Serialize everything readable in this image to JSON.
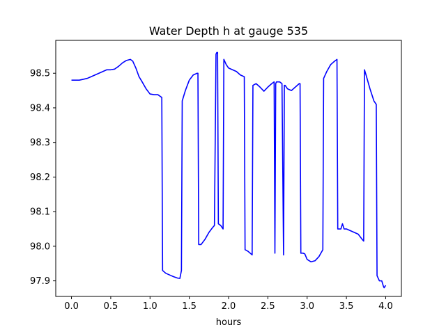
{
  "chart_data": {
    "type": "line",
    "title": "Water Depth h at gauge 535",
    "xlabel": "hours",
    "ylabel": "",
    "xlim": [
      -0.2,
      4.2
    ],
    "ylim": [
      97.855,
      98.595
    ],
    "grid": false,
    "xticks": [
      {
        "value": 0.0,
        "label": "0.0"
      },
      {
        "value": 0.5,
        "label": "0.5"
      },
      {
        "value": 1.0,
        "label": "1.0"
      },
      {
        "value": 1.5,
        "label": "1.5"
      },
      {
        "value": 2.0,
        "label": "2.0"
      },
      {
        "value": 2.5,
        "label": "2.5"
      },
      {
        "value": 3.0,
        "label": "3.0"
      },
      {
        "value": 3.5,
        "label": "3.5"
      },
      {
        "value": 4.0,
        "label": "4.0"
      }
    ],
    "yticks": [
      {
        "value": 97.9,
        "label": "97.9"
      },
      {
        "value": 98.0,
        "label": "98.0"
      },
      {
        "value": 98.1,
        "label": "98.1"
      },
      {
        "value": 98.2,
        "label": "98.2"
      },
      {
        "value": 98.3,
        "label": "98.3"
      },
      {
        "value": 98.4,
        "label": "98.4"
      },
      {
        "value": 98.5,
        "label": "98.5"
      }
    ],
    "series": [
      {
        "color": "#0000ff",
        "x": [
          0.0,
          0.1,
          0.2,
          0.3,
          0.4,
          0.45,
          0.5,
          0.55,
          0.6,
          0.65,
          0.7,
          0.75,
          0.78,
          0.82,
          0.86,
          0.9,
          0.95,
          1.0,
          1.05,
          1.1,
          1.15,
          1.16,
          1.2,
          1.25,
          1.3,
          1.35,
          1.38,
          1.4,
          1.41,
          1.45,
          1.5,
          1.55,
          1.6,
          1.61,
          1.62,
          1.65,
          1.7,
          1.75,
          1.8,
          1.82,
          1.84,
          1.85,
          1.86,
          1.87,
          1.9,
          1.93,
          1.94,
          1.97,
          2.0,
          2.05,
          2.1,
          2.15,
          2.2,
          2.21,
          2.25,
          2.3,
          2.31,
          2.35,
          2.4,
          2.45,
          2.5,
          2.55,
          2.58,
          2.59,
          2.6,
          2.61,
          2.65,
          2.68,
          2.7,
          2.71,
          2.72,
          2.75,
          2.8,
          2.85,
          2.9,
          2.91,
          2.92,
          2.95,
          2.97,
          3.0,
          3.05,
          3.1,
          3.15,
          3.2,
          3.21,
          3.25,
          3.3,
          3.35,
          3.38,
          3.39,
          3.4,
          3.43,
          3.45,
          3.47,
          3.5,
          3.55,
          3.6,
          3.65,
          3.7,
          3.72,
          3.73,
          3.75,
          3.8,
          3.85,
          3.88,
          3.89,
          3.9,
          3.92,
          3.95,
          3.97,
          3.98,
          4.0
        ],
        "y": [
          98.48,
          98.48,
          98.485,
          98.495,
          98.505,
          98.51,
          98.51,
          98.512,
          98.52,
          98.53,
          98.537,
          98.54,
          98.535,
          98.515,
          98.49,
          98.475,
          98.455,
          98.44,
          98.438,
          98.438,
          98.43,
          97.93,
          97.922,
          97.917,
          97.912,
          97.908,
          97.907,
          97.93,
          98.42,
          98.45,
          98.48,
          98.495,
          98.5,
          98.5,
          98.005,
          98.005,
          98.02,
          98.04,
          98.055,
          98.06,
          98.555,
          98.56,
          98.56,
          98.065,
          98.06,
          98.05,
          98.54,
          98.525,
          98.515,
          98.51,
          98.505,
          98.495,
          98.49,
          97.99,
          97.985,
          97.975,
          98.465,
          98.47,
          98.46,
          98.448,
          98.46,
          98.47,
          98.475,
          97.98,
          98.47,
          98.475,
          98.475,
          98.47,
          97.975,
          98.465,
          98.465,
          98.455,
          98.45,
          98.46,
          98.47,
          98.47,
          97.98,
          97.98,
          97.978,
          97.962,
          97.955,
          97.958,
          97.97,
          97.99,
          98.485,
          98.505,
          98.525,
          98.535,
          98.54,
          98.05,
          98.05,
          98.05,
          98.065,
          98.05,
          98.05,
          98.045,
          98.04,
          98.035,
          98.02,
          98.015,
          98.51,
          98.495,
          98.455,
          98.42,
          98.41,
          97.915,
          97.91,
          97.9,
          97.9,
          97.885,
          97.88,
          97.887
        ]
      }
    ]
  }
}
